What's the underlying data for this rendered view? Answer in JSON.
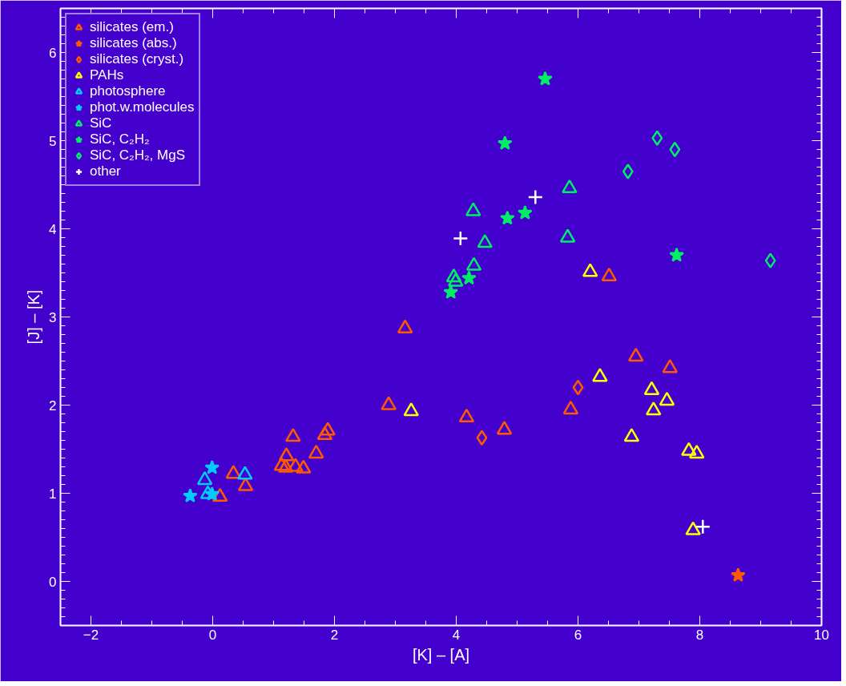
{
  "chart_data": {
    "type": "scatter",
    "xlabel": "[K] – [A]",
    "ylabel": "[J] – [K]",
    "xlim": [
      -2.5,
      10
    ],
    "ylim": [
      -0.5,
      6.5
    ],
    "xticks": [
      {
        "value": -2,
        "label": "−2"
      },
      0,
      2,
      4,
      6,
      8,
      10
    ],
    "yticks": [
      0,
      1,
      2,
      3,
      4,
      5,
      6
    ],
    "grid": false,
    "legend": "top left",
    "series": [
      {
        "name": "silicates (em.)",
        "color": "#ff5a00",
        "marker": "triangle",
        "x": [
          0.12,
          0.34,
          0.54,
          1.13,
          1.2,
          1.21,
          1.36,
          1.49,
          1.32,
          1.7,
          1.84,
          1.89,
          2.89,
          3.16,
          4.17,
          4.79,
          5.88,
          6.51,
          6.95,
          7.51
        ],
        "values": [
          0.96,
          1.22,
          1.08,
          1.31,
          1.29,
          1.42,
          1.3,
          1.28,
          1.64,
          1.45,
          1.66,
          1.71,
          2.0,
          2.87,
          1.86,
          1.72,
          1.95,
          3.46,
          2.55,
          2.42
        ]
      },
      {
        "name": "silicates (abs.)",
        "color": "#ff5a00",
        "marker": "star",
        "x": [
          8.63
        ],
        "values": [
          0.07
        ]
      },
      {
        "name": "silicates (cryst.)",
        "color": "#ff5a00",
        "marker": "diamond",
        "x": [
          4.42,
          6.0
        ],
        "values": [
          1.63,
          2.2
        ]
      },
      {
        "name": "PAHs",
        "color": "#ffff00",
        "marker": "triangle",
        "x": [
          3.26,
          6.2,
          6.36,
          6.88,
          7.21,
          7.24,
          7.46,
          7.82,
          7.95,
          7.89
        ],
        "values": [
          1.93,
          3.51,
          2.32,
          1.64,
          2.17,
          1.94,
          2.05,
          1.48,
          1.45,
          0.58
        ]
      },
      {
        "name": "photosphere",
        "color": "#00ccff",
        "marker": "triangle",
        "x": [
          -0.13,
          -0.08,
          0.53
        ],
        "values": [
          1.15,
          0.99,
          1.21
        ]
      },
      {
        "name": "phot.w.molecules",
        "color": "#00ccff",
        "marker": "star",
        "x": [
          -0.37,
          -0.01,
          -0.01
        ],
        "values": [
          0.97,
          1.29,
          0.99
        ]
      },
      {
        "name": "SiC",
        "color": "#00ee66",
        "marker": "triangle",
        "x": [
          3.96,
          3.99,
          4.29,
          4.28,
          4.47,
          5.83,
          5.86
        ],
        "values": [
          3.45,
          3.4,
          3.58,
          4.2,
          3.84,
          3.9,
          4.46
        ]
      },
      {
        "name": "SiC, C₂H₂",
        "color": "#00ee66",
        "marker": "star",
        "x": [
          3.91,
          4.21,
          4.84,
          5.13,
          4.8,
          5.46,
          7.62
        ],
        "values": [
          3.28,
          3.44,
          4.12,
          4.18,
          4.97,
          5.7,
          3.7
        ]
      },
      {
        "name": "SiC, C₂H₂, MgS",
        "color": "#00ee66",
        "marker": "diamond",
        "x": [
          6.82,
          7.3,
          7.59,
          9.16
        ],
        "values": [
          4.65,
          5.03,
          4.9,
          3.64
        ]
      },
      {
        "name": "other",
        "color": "#ffffff",
        "marker": "cross",
        "x": [
          4.07,
          5.3,
          8.05
        ],
        "values": [
          3.89,
          4.36,
          0.62
        ]
      }
    ]
  }
}
